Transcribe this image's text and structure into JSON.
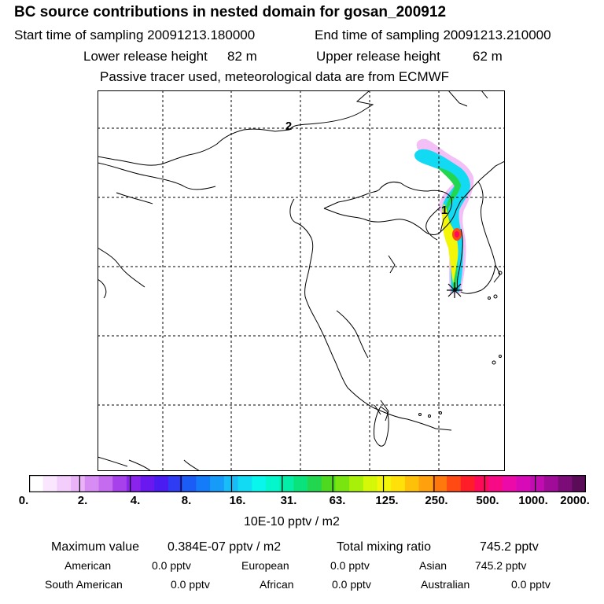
{
  "header": {
    "title": "BC  source contributions in nested domain for gosan_200912",
    "start_label": "Start time of sampling 20091213.180000",
    "end_label": "End time of sampling 20091213.210000",
    "lower_label": "Lower release height",
    "lower_value": "82 m",
    "upper_label": "Upper release height",
    "upper_value": "62 m",
    "note": "Passive tracer used, meteorological data are from ECMWF"
  },
  "map": {
    "contour_labels": [
      "2",
      "1"
    ],
    "receptor": "gosan"
  },
  "colorbar": {
    "ticks": [
      "0.",
      "2.",
      "4.",
      "8.",
      "16.",
      "31.",
      "63.",
      "125.",
      "250.",
      "500.",
      "1000.",
      "2000."
    ],
    "units": "10E-10 pptv / m2",
    "colors": [
      "#ffffff",
      "#fbe6ff",
      "#f3cdfb",
      "#eab3f8",
      "#d68cf2",
      "#c46bf0",
      "#a641ec",
      "#8a24ec",
      "#6a18f0",
      "#4a1cf2",
      "#2e3cf4",
      "#1c5cf6",
      "#147cf8",
      "#169cf8",
      "#18bcf6",
      "#12daf2",
      "#08f6ec",
      "#04f6cc",
      "#04eea8",
      "#0ae27c",
      "#22d650",
      "#4ed820",
      "#7ae410",
      "#a8f00a",
      "#d4f808",
      "#f4f60a",
      "#ffe008",
      "#ffc00a",
      "#ffa00c",
      "#ff780e",
      "#ff4a14",
      "#ff1e28",
      "#ff0a58",
      "#f80a86",
      "#ec0aa8",
      "#d80ab8",
      "#c00cb0",
      "#a00c98",
      "#7c0c78",
      "#5a0c58"
    ]
  },
  "summary": {
    "max_label": "Maximum value",
    "max_value": "0.384E-07 pptv / m2",
    "total_label": "Total mixing ratio",
    "total_value": "745.2 pptv",
    "regions": [
      {
        "name": "American",
        "value": "0.0 pptv"
      },
      {
        "name": "European",
        "value": "0.0 pptv"
      },
      {
        "name": "Asian",
        "value": "745.2 pptv"
      },
      {
        "name": "South American",
        "value": "0.0 pptv"
      },
      {
        "name": "African",
        "value": "0.0 pptv"
      },
      {
        "name": "Australian",
        "value": "0.0 pptv"
      }
    ]
  }
}
